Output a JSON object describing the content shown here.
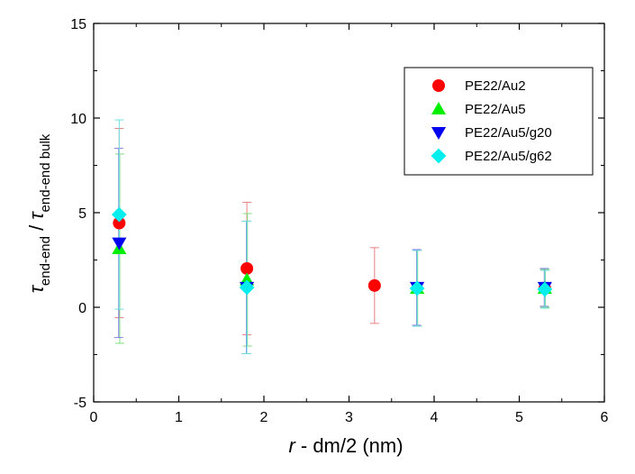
{
  "chart_data": {
    "type": "scatter",
    "xlabel_italic": "r",
    "xlabel_rest": " - dm/2 (nm)",
    "ylabel": {
      "num_symbol": "τ",
      "num_sub": "end-end",
      "slash": " / ",
      "den_symbol": "τ",
      "den_sub": "end-end bulk"
    },
    "xlim": [
      0,
      6
    ],
    "ylim": [
      -5,
      15
    ],
    "xticks": [
      0,
      1,
      2,
      3,
      4,
      5,
      6
    ],
    "yticks": [
      -5,
      0,
      5,
      10,
      15
    ],
    "legend_position": "top-right",
    "series": [
      {
        "name": "PE22/Au2",
        "marker": "circle",
        "color": "#ff0000",
        "errcolor": "#e88080",
        "points": [
          {
            "x": 0.3,
            "y": 4.45,
            "err": 5.0
          },
          {
            "x": 1.8,
            "y": 2.05,
            "err": 3.5
          },
          {
            "x": 3.3,
            "y": 1.15,
            "err": 2.0
          },
          {
            "x": 5.3,
            "y": 1.0,
            "err": 1.0
          }
        ]
      },
      {
        "name": "PE22/Au5",
        "marker": "triangle-up",
        "color": "#00ee00",
        "errcolor": "#80e080",
        "points": [
          {
            "x": 0.3,
            "y": 3.1,
            "err": 5.0
          },
          {
            "x": 1.8,
            "y": 1.45,
            "err": 3.5
          },
          {
            "x": 3.8,
            "y": 1.0,
            "err": 2.0
          },
          {
            "x": 5.3,
            "y": 1.0,
            "err": 1.0
          }
        ]
      },
      {
        "name": "PE22/Au5/g20",
        "marker": "triangle-down",
        "color": "#0000ee",
        "errcolor": "#7f7fe8",
        "points": [
          {
            "x": 0.3,
            "y": 3.4,
            "err": 5.0
          },
          {
            "x": 1.8,
            "y": 1.05,
            "err": 3.5
          },
          {
            "x": 3.8,
            "y": 1.05,
            "err": 2.0
          },
          {
            "x": 5.3,
            "y": 1.05,
            "err": 1.0
          }
        ]
      },
      {
        "name": "PE22/Au5/g62",
        "marker": "diamond",
        "color": "#00eeee",
        "errcolor": "#70e0e0",
        "points": [
          {
            "x": 0.3,
            "y": 4.9,
            "err": 5.0
          },
          {
            "x": 1.8,
            "y": 1.05,
            "err": 3.5
          },
          {
            "x": 3.8,
            "y": 1.0,
            "err": 2.0
          },
          {
            "x": 5.3,
            "y": 0.95,
            "err": 1.0
          }
        ]
      }
    ]
  }
}
